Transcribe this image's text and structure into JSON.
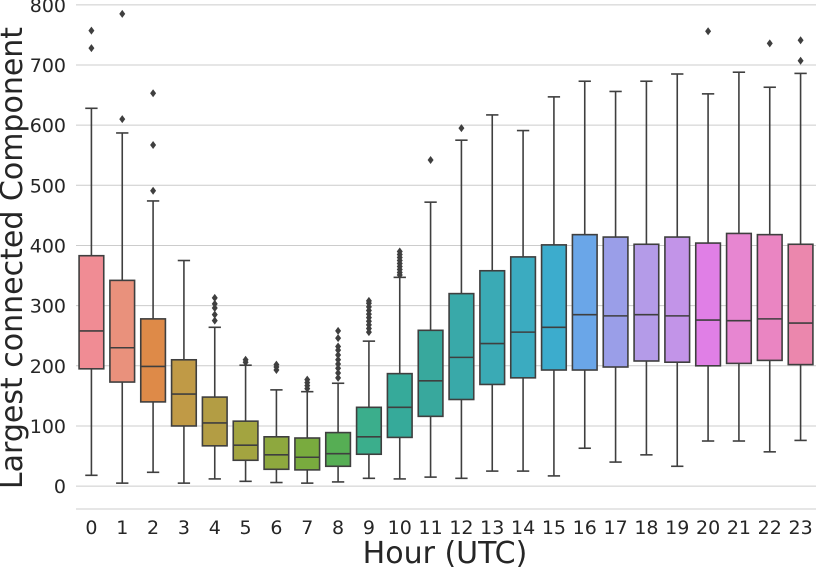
{
  "chart_data": {
    "type": "box",
    "xlabel": "Hour (UTC)",
    "ylabel": "Largest connected Component",
    "ylim": [
      -38,
      808
    ],
    "yticks": [
      0,
      100,
      200,
      300,
      400,
      500,
      600,
      700,
      800
    ],
    "grid": true,
    "categories": [
      "0",
      "1",
      "2",
      "3",
      "4",
      "5",
      "6",
      "7",
      "8",
      "9",
      "10",
      "11",
      "12",
      "13",
      "14",
      "15",
      "16",
      "17",
      "18",
      "19",
      "20",
      "21",
      "22",
      "23"
    ],
    "colors": [
      "#f08c94",
      "#e9917c",
      "#de8a48",
      "#c09a46",
      "#b39d44",
      "#a3a440",
      "#8ea83e",
      "#79ab3e",
      "#56ae54",
      "#3bae8c",
      "#36aa9a",
      "#38a89d",
      "#39a9a9",
      "#3aaab5",
      "#3babc0",
      "#3caccd",
      "#6aa6e8",
      "#9a9ee8",
      "#b49be8",
      "#c294e8",
      "#e07fe6",
      "#e786d1",
      "#ea85c2",
      "#eb87ad"
    ],
    "boxes": [
      {
        "whislo": 18,
        "q1": 195,
        "med": 258,
        "q3": 383,
        "whishi": 628,
        "fliers": [
          728,
          757
        ]
      },
      {
        "whislo": 5,
        "q1": 173,
        "med": 230,
        "q3": 342,
        "whishi": 587,
        "fliers": [
          610,
          785
        ]
      },
      {
        "whislo": 23,
        "q1": 140,
        "med": 199,
        "q3": 278,
        "whishi": 474,
        "fliers": [
          491,
          567,
          653
        ]
      },
      {
        "whislo": 5,
        "q1": 100,
        "med": 153,
        "q3": 210,
        "whishi": 375,
        "fliers": []
      },
      {
        "whislo": 12,
        "q1": 67,
        "med": 105,
        "q3": 148,
        "whishi": 264,
        "fliers": [
          275,
          285,
          296,
          303,
          313
        ]
      },
      {
        "whislo": 8,
        "q1": 43,
        "med": 68,
        "q3": 108,
        "whishi": 201,
        "fliers": [
          206,
          210
        ]
      },
      {
        "whislo": 6,
        "q1": 28,
        "med": 52,
        "q3": 82,
        "whishi": 160,
        "fliers": [
          193,
          198,
          202
        ]
      },
      {
        "whislo": 5,
        "q1": 27,
        "med": 48,
        "q3": 80,
        "whishi": 157,
        "fliers": [
          162,
          167,
          172,
          177
        ]
      },
      {
        "whislo": 7,
        "q1": 33,
        "med": 54,
        "q3": 89,
        "whishi": 171,
        "fliers": [
          180,
          188,
          196,
          203,
          210,
          218,
          226,
          232,
          246,
          258
        ]
      },
      {
        "whislo": 13,
        "q1": 53,
        "med": 82,
        "q3": 131,
        "whishi": 241,
        "fliers": [
          256,
          262,
          268,
          274,
          280,
          286,
          292,
          298,
          304,
          308
        ]
      },
      {
        "whislo": 12,
        "q1": 81,
        "med": 131,
        "q3": 187,
        "whishi": 347,
        "fliers": [
          351,
          355,
          360,
          365,
          370,
          375,
          380,
          385,
          390
        ]
      },
      {
        "whislo": 15,
        "q1": 116,
        "med": 175,
        "q3": 259,
        "whishi": 472,
        "fliers": [
          542
        ]
      },
      {
        "whislo": 13,
        "q1": 144,
        "med": 214,
        "q3": 320,
        "whishi": 575,
        "fliers": [
          595
        ]
      },
      {
        "whislo": 25,
        "q1": 169,
        "med": 237,
        "q3": 358,
        "whishi": 617,
        "fliers": []
      },
      {
        "whislo": 25,
        "q1": 180,
        "med": 256,
        "q3": 381,
        "whishi": 591,
        "fliers": []
      },
      {
        "whislo": 17,
        "q1": 193,
        "med": 264,
        "q3": 401,
        "whishi": 647,
        "fliers": []
      },
      {
        "whislo": 63,
        "q1": 193,
        "med": 285,
        "q3": 418,
        "whishi": 673,
        "fliers": []
      },
      {
        "whislo": 40,
        "q1": 198,
        "med": 283,
        "q3": 414,
        "whishi": 656,
        "fliers": []
      },
      {
        "whislo": 52,
        "q1": 208,
        "med": 285,
        "q3": 402,
        "whishi": 673,
        "fliers": []
      },
      {
        "whislo": 33,
        "q1": 206,
        "med": 283,
        "q3": 414,
        "whishi": 685,
        "fliers": []
      },
      {
        "whislo": 75,
        "q1": 200,
        "med": 276,
        "q3": 404,
        "whishi": 652,
        "fliers": [
          756
        ]
      },
      {
        "whislo": 75,
        "q1": 204,
        "med": 275,
        "q3": 420,
        "whishi": 688,
        "fliers": []
      },
      {
        "whislo": 57,
        "q1": 209,
        "med": 278,
        "q3": 418,
        "whishi": 663,
        "fliers": [
          736
        ]
      },
      {
        "whislo": 76,
        "q1": 202,
        "med": 271,
        "q3": 402,
        "whishi": 686,
        "fliers": [
          707,
          741
        ]
      }
    ]
  }
}
